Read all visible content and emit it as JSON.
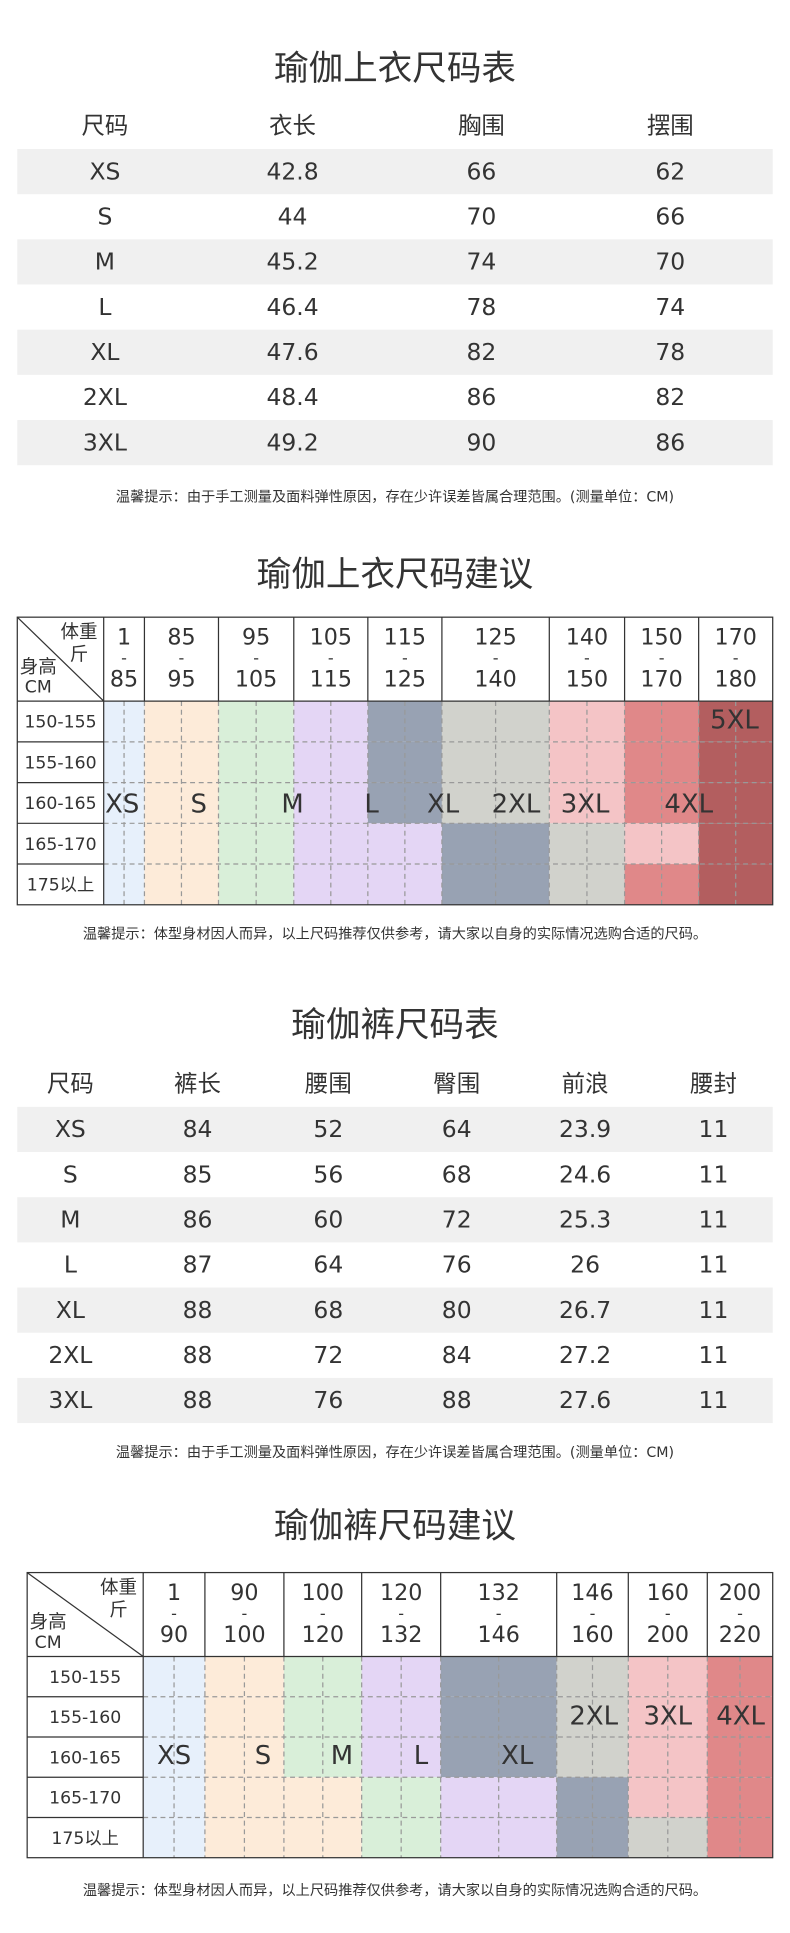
{
  "tops_size_table": {
    "title": "瑜伽上衣尺码表",
    "headers": [
      "尺码",
      "衣长",
      "胸围",
      "摆围"
    ],
    "rows": [
      [
        "XS",
        "42.8",
        "66",
        "62"
      ],
      [
        "S",
        "44",
        "70",
        "66"
      ],
      [
        "M",
        "45.2",
        "74",
        "70"
      ],
      [
        "L",
        "46.4",
        "78",
        "74"
      ],
      [
        "XL",
        "47.6",
        "82",
        "78"
      ],
      [
        "2XL",
        "48.4",
        "86",
        "82"
      ],
      [
        "3XL",
        "49.2",
        "90",
        "86"
      ]
    ],
    "note": "温馨提示：由于手工测量及面料弹性原因，存在少许误差皆属合理范围。(测量单位：CM)"
  },
  "tops_recommend": {
    "title": "瑜伽上衣尺码建议",
    "corner": {
      "weight": "体重",
      "weight_unit": "斤",
      "height": "身高",
      "height_unit": "CM"
    },
    "weights": [
      [
        "1",
        "-",
        "85"
      ],
      [
        "85",
        "-",
        "95"
      ],
      [
        "95",
        "-",
        "105"
      ],
      [
        "105",
        "-",
        "115"
      ],
      [
        "115",
        "-",
        "125"
      ],
      [
        "125",
        "-",
        "140"
      ],
      [
        "140",
        "-",
        "150"
      ],
      [
        "150",
        "-",
        "170"
      ],
      [
        "170",
        "-",
        "180"
      ]
    ],
    "heights": [
      "150-155",
      "155-160",
      "160-165",
      "165-170",
      "175以上"
    ],
    "sizes": [
      "XS",
      "S",
      "M",
      "L",
      "XL",
      "2XL",
      "3XL",
      "4XL",
      "5XL"
    ],
    "note": "温馨提示：体型身材因人而异，以上尺码推荐仅供参考，请大家以自身的实际情况选购合适的尺码。"
  },
  "pants_size_table": {
    "title": "瑜伽裤尺码表",
    "headers": [
      "尺码",
      "裤长",
      "腰围",
      "臀围",
      "前浪",
      "腰封"
    ],
    "rows": [
      [
        "XS",
        "84",
        "52",
        "64",
        "23.9",
        "11"
      ],
      [
        "S",
        "85",
        "56",
        "68",
        "24.6",
        "11"
      ],
      [
        "M",
        "86",
        "60",
        "72",
        "25.3",
        "11"
      ],
      [
        "L",
        "87",
        "64",
        "76",
        "26",
        "11"
      ],
      [
        "XL",
        "88",
        "68",
        "80",
        "26.7",
        "11"
      ],
      [
        "2XL",
        "88",
        "72",
        "84",
        "27.2",
        "11"
      ],
      [
        "3XL",
        "88",
        "76",
        "88",
        "27.6",
        "11"
      ]
    ],
    "note": "温馨提示：由于手工测量及面料弹性原因，存在少许误差皆属合理范围。(测量单位：CM)"
  },
  "pants_recommend": {
    "title": "瑜伽裤尺码建议",
    "corner": {
      "weight": "体重",
      "weight_unit": "斤",
      "height": "身高",
      "height_unit": "CM"
    },
    "weights": [
      [
        "1",
        "-",
        "90"
      ],
      [
        "90",
        "-",
        "100"
      ],
      [
        "100",
        "-",
        "120"
      ],
      [
        "120",
        "-",
        "132"
      ],
      [
        "132",
        "-",
        "146"
      ],
      [
        "146",
        "-",
        "160"
      ],
      [
        "160",
        "-",
        "200"
      ],
      [
        "200",
        "-",
        "220"
      ]
    ],
    "heights": [
      "150-155",
      "155-160",
      "160-165",
      "165-170",
      "175以上"
    ],
    "sizes": [
      "XS",
      "S",
      "M",
      "L",
      "XL",
      "2XL",
      "3XL",
      "4XL"
    ],
    "note": "温馨提示：体型身材因人而异，以上尺码推荐仅供参考，请大家以自身的实际情况选购合适的尺码。"
  }
}
